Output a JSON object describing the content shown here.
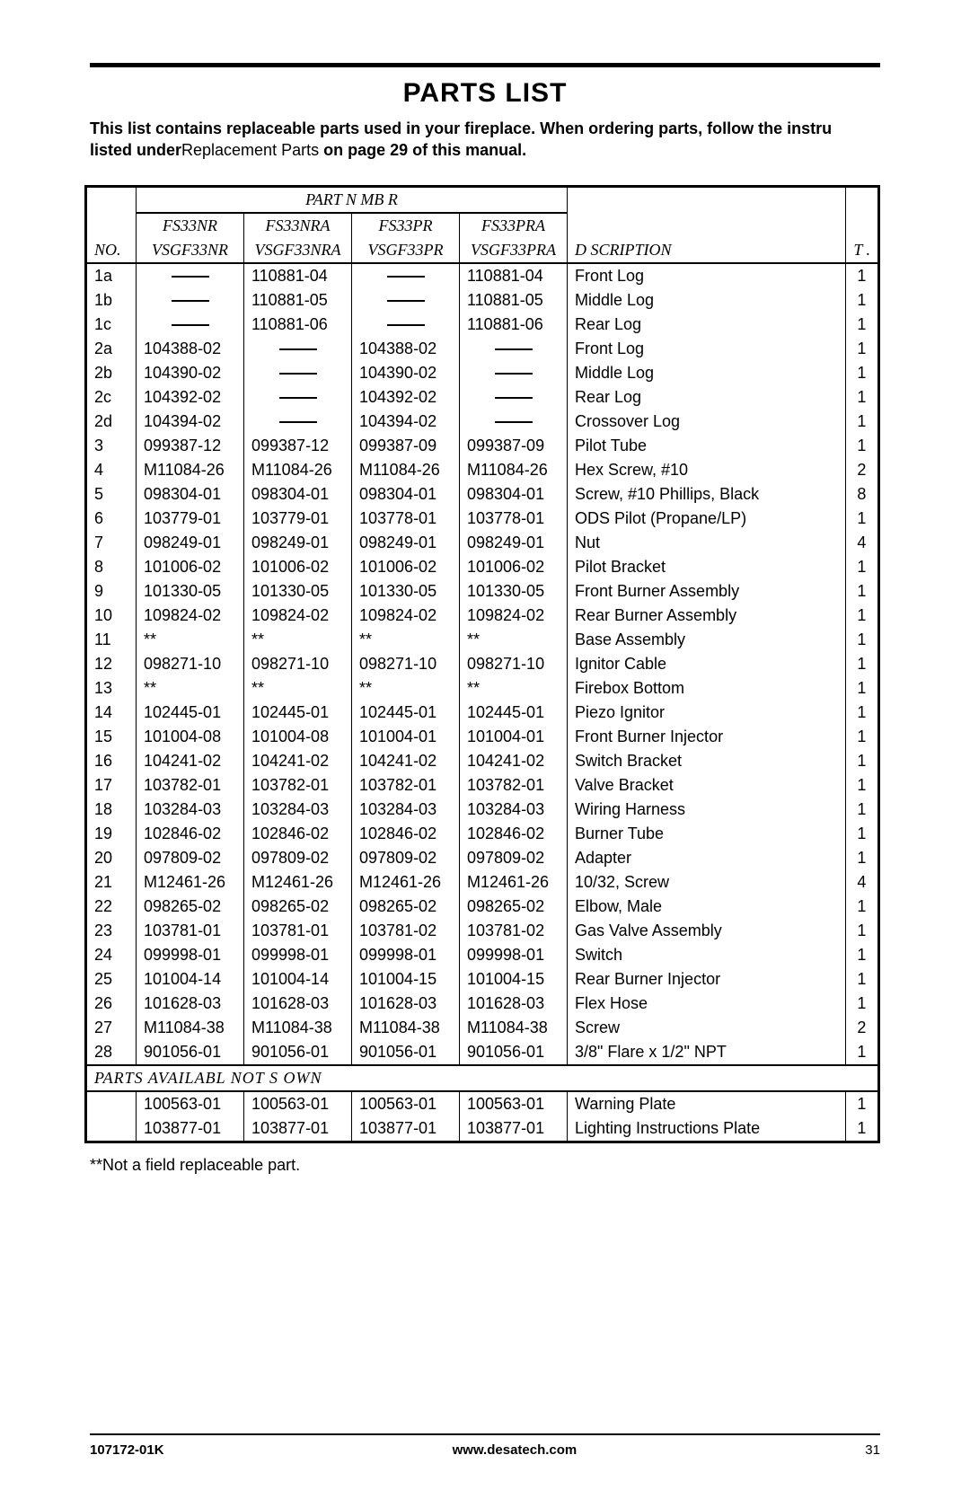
{
  "title": "PARTS LIST",
  "intro_html_parts": {
    "a": "This list contains replaceable parts used in your fireplace. When ordering parts, follow the instru",
    "b": "listed under",
    "c": "Replacement Parts",
    "d": " on page 29 of this manual."
  },
  "header": {
    "part_number": "PART N   MB   R",
    "models": [
      "FS33NR",
      "FS33NRA",
      "FS33PR",
      "FS33PRA"
    ],
    "submodels": [
      "VSGF33NR",
      "VSGF33NRA",
      "VSGF33PR",
      "VSGF33PRA"
    ],
    "no": "NO.",
    "description": "D   SCRIPTION",
    "qty": "T  ."
  },
  "rows": [
    {
      "no": "1a",
      "pn": [
        "—",
        "110881-04",
        "—",
        "110881-04"
      ],
      "desc": "Front Log",
      "qty": "1"
    },
    {
      "no": "1b",
      "pn": [
        "—",
        "110881-05",
        "—",
        "110881-05"
      ],
      "desc": "Middle Log",
      "qty": "1"
    },
    {
      "no": "1c",
      "pn": [
        "—",
        "110881-06",
        "—",
        "110881-06"
      ],
      "desc": "Rear Log",
      "qty": "1"
    },
    {
      "no": "2a",
      "pn": [
        "104388-02",
        "—",
        "104388-02",
        "—"
      ],
      "desc": "Front Log",
      "qty": "1"
    },
    {
      "no": "2b",
      "pn": [
        "104390-02",
        "—",
        "104390-02",
        "—"
      ],
      "desc": "Middle Log",
      "qty": "1"
    },
    {
      "no": "2c",
      "pn": [
        "104392-02",
        "—",
        "104392-02",
        "—"
      ],
      "desc": "Rear Log",
      "qty": "1"
    },
    {
      "no": "2d",
      "pn": [
        "104394-02",
        "—",
        "104394-02",
        "—"
      ],
      "desc": "Crossover Log",
      "qty": "1"
    },
    {
      "no": "3",
      "pn": [
        "099387-12",
        "099387-12",
        "099387-09",
        "099387-09"
      ],
      "desc": "Pilot Tube",
      "qty": "1"
    },
    {
      "no": "4",
      "pn": [
        "M11084-26",
        "M11084-26",
        "M11084-26",
        "M11084-26"
      ],
      "desc": "Hex Screw, #10",
      "qty": "2"
    },
    {
      "no": "5",
      "pn": [
        "098304-01",
        "098304-01",
        "098304-01",
        "098304-01"
      ],
      "desc": "Screw, #10 Phillips, Black",
      "qty": "8"
    },
    {
      "no": "6",
      "pn": [
        "103779-01",
        "103779-01",
        "103778-01",
        "103778-01"
      ],
      "desc": "ODS Pilot (Propane/LP)",
      "qty": "1"
    },
    {
      "no": "7",
      "pn": [
        "098249-01",
        "098249-01",
        "098249-01",
        "098249-01"
      ],
      "desc": "Nut",
      "qty": "4"
    },
    {
      "no": "8",
      "pn": [
        "101006-02",
        "101006-02",
        "101006-02",
        "101006-02"
      ],
      "desc": "Pilot Bracket",
      "qty": "1"
    },
    {
      "no": "9",
      "pn": [
        "101330-05",
        "101330-05",
        "101330-05",
        "101330-05"
      ],
      "desc": "Front Burner Assembly",
      "qty": "1"
    },
    {
      "no": "10",
      "pn": [
        "109824-02",
        "109824-02",
        "109824-02",
        "109824-02"
      ],
      "desc": "Rear Burner Assembly",
      "qty": "1"
    },
    {
      "no": "11",
      "pn": [
        "**",
        "**",
        "**",
        "**"
      ],
      "desc": "Base Assembly",
      "qty": "1"
    },
    {
      "no": "12",
      "pn": [
        "098271-10",
        "098271-10",
        "098271-10",
        "098271-10"
      ],
      "desc": "Ignitor Cable",
      "qty": "1"
    },
    {
      "no": "13",
      "pn": [
        "**",
        "**",
        "**",
        "**"
      ],
      "desc": "Firebox Bottom",
      "qty": "1"
    },
    {
      "no": "14",
      "pn": [
        "102445-01",
        "102445-01",
        "102445-01",
        "102445-01"
      ],
      "desc": "Piezo Ignitor",
      "qty": "1"
    },
    {
      "no": "15",
      "pn": [
        "101004-08",
        "101004-08",
        "101004-01",
        "101004-01"
      ],
      "desc": "Front Burner Injector",
      "qty": "1"
    },
    {
      "no": "16",
      "pn": [
        "104241-02",
        "104241-02",
        "104241-02",
        "104241-02"
      ],
      "desc": "Switch Bracket",
      "qty": "1"
    },
    {
      "no": "17",
      "pn": [
        "103782-01",
        "103782-01",
        "103782-01",
        "103782-01"
      ],
      "desc": "Valve Bracket",
      "qty": "1"
    },
    {
      "no": "18",
      "pn": [
        "103284-03",
        "103284-03",
        "103284-03",
        "103284-03"
      ],
      "desc": "Wiring Harness",
      "qty": "1"
    },
    {
      "no": "19",
      "pn": [
        "102846-02",
        "102846-02",
        "102846-02",
        "102846-02"
      ],
      "desc": "Burner Tube",
      "qty": "1"
    },
    {
      "no": "20",
      "pn": [
        "097809-02",
        "097809-02",
        "097809-02",
        "097809-02"
      ],
      "desc": "Adapter",
      "qty": "1"
    },
    {
      "no": "21",
      "pn": [
        "M12461-26",
        "M12461-26",
        "M12461-26",
        "M12461-26"
      ],
      "desc": "10/32, Screw",
      "qty": "4"
    },
    {
      "no": "22",
      "pn": [
        "098265-02",
        "098265-02",
        "098265-02",
        "098265-02"
      ],
      "desc": "Elbow, Male",
      "qty": "1"
    },
    {
      "no": "23",
      "pn": [
        "103781-01",
        "103781-01",
        "103781-02",
        "103781-02"
      ],
      "desc": "Gas Valve Assembly",
      "qty": "1"
    },
    {
      "no": "24",
      "pn": [
        "099998-01",
        "099998-01",
        "099998-01",
        "099998-01"
      ],
      "desc": "Switch",
      "qty": "1"
    },
    {
      "no": "25",
      "pn": [
        "101004-14",
        "101004-14",
        "101004-15",
        "101004-15"
      ],
      "desc": "Rear Burner Injector",
      "qty": "1"
    },
    {
      "no": "26",
      "pn": [
        "101628-03",
        "101628-03",
        "101628-03",
        "101628-03"
      ],
      "desc": "Flex Hose",
      "qty": "1"
    },
    {
      "no": "27",
      "pn": [
        "M11084-38",
        "M11084-38",
        "M11084-38",
        "M11084-38"
      ],
      "desc": "Screw",
      "qty": "2"
    },
    {
      "no": "28",
      "pn": [
        "901056-01",
        "901056-01",
        "901056-01",
        "901056-01"
      ],
      "desc": "3/8\" Flare x 1/2\" NPT",
      "qty": "1"
    }
  ],
  "avail_header": "PARTS AVAILABL    NOT S   OWN",
  "avail_rows": [
    {
      "no": "",
      "pn": [
        "100563-01",
        "100563-01",
        "100563-01",
        "100563-01"
      ],
      "desc": "Warning Plate",
      "qty": "1"
    },
    {
      "no": "",
      "pn": [
        "103877-01",
        "103877-01",
        "103877-01",
        "103877-01"
      ],
      "desc": "Lighting Instructions Plate",
      "qty": "1"
    }
  ],
  "footnote": "**Not a field replaceable part.",
  "footer": {
    "doc": "107172-01K",
    "url": "www.desatech.com",
    "page": "31"
  }
}
